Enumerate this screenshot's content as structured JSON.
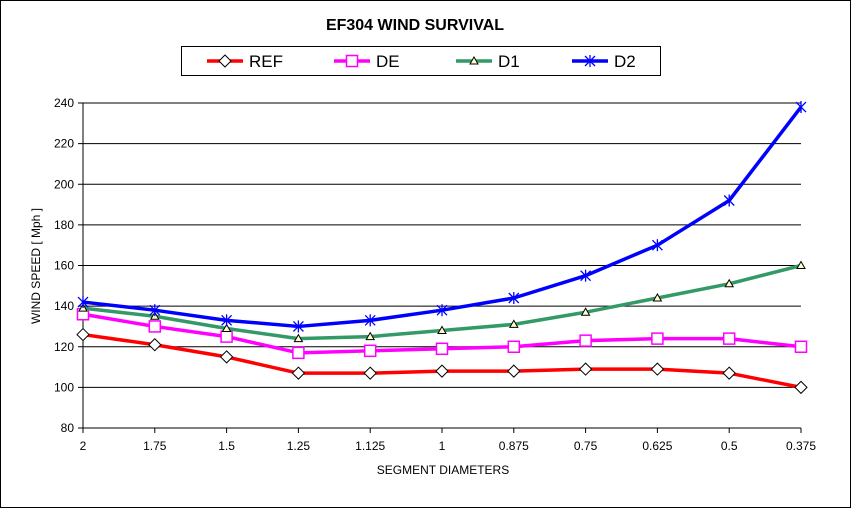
{
  "chart_data": {
    "type": "line",
    "title": "EF304 WIND SURVIVAL",
    "xlabel": "SEGMENT DIAMETERS",
    "ylabel": "WIND SPEED  [ Mph ]",
    "categories": [
      "2",
      "1.75",
      "1.5",
      "1.25",
      "1.125",
      "1",
      "0.875",
      "0.75",
      "0.625",
      "0.5",
      "0.375"
    ],
    "ylim": [
      80,
      240
    ],
    "yticks": [
      80,
      100,
      120,
      140,
      160,
      180,
      200,
      220,
      240
    ],
    "grid": "horizontal",
    "legend_position": "top-center",
    "series": [
      {
        "name": "REF",
        "color": "#ff0000",
        "marker": "diamond",
        "values": [
          126,
          121,
          115,
          107,
          107,
          108,
          108,
          109,
          109,
          107,
          100
        ]
      },
      {
        "name": "DE",
        "color": "#ff00ff",
        "marker": "square",
        "values": [
          136,
          130,
          125,
          117,
          118,
          119,
          120,
          123,
          124,
          124,
          120
        ]
      },
      {
        "name": "D1",
        "color": "#339966",
        "marker": "triangle",
        "values": [
          139,
          135,
          129,
          124,
          125,
          128,
          131,
          137,
          144,
          151,
          160
        ]
      },
      {
        "name": "D2",
        "color": "#0000ff",
        "marker": "star",
        "values": [
          142,
          138,
          133,
          130,
          133,
          138,
          144,
          155,
          170,
          192,
          238
        ]
      }
    ]
  }
}
